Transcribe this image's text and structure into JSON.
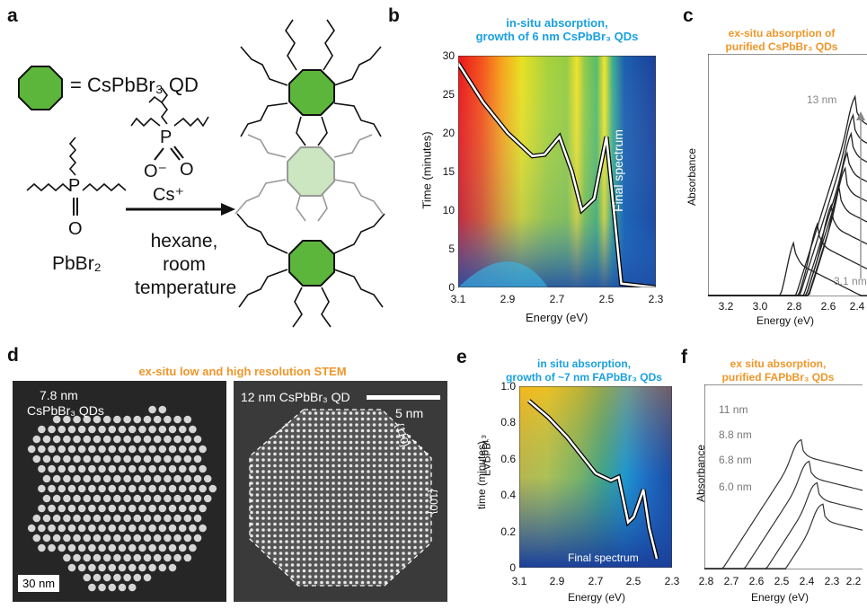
{
  "panels": {
    "a": {
      "label": "a",
      "legend_text": "= CsPbBr₃ QD",
      "cs_ion": "Cs⁺",
      "o_minus": "O⁻",
      "o": "O",
      "p": "P",
      "o_top": "O",
      "reactant": "PbBr₂",
      "conditions": [
        "hexane,",
        "room",
        "temperature"
      ],
      "qd_color": "#5db63c",
      "qd_faded_color": "#cce6c1"
    },
    "b": {
      "label": "b",
      "title_line1": "in-situ absorption,",
      "title_line2": "growth of 6 nm CsPbBr₃ QDs",
      "final_spectrum": "Final spectrum"
    },
    "c": {
      "label": "c",
      "title_line1": "ex-situ absorption of",
      "title_line2": "purified CsPbBr₃ QDs",
      "size_top": "13 nm",
      "size_bottom": "3.1 nm"
    },
    "d": {
      "label": "d",
      "title": "ex-situ low and high resolution STEM",
      "left_label_line1": "7.8 nm",
      "left_label_line2": "CsPbBr₃ QDs",
      "left_scale": "30 nm",
      "right_label": "12 nm CsPbBr₃ QD",
      "right_scale": "5 nm",
      "facet_110": "{110}",
      "facet_100": "{100}"
    },
    "e": {
      "label": "e",
      "title_line1": "in situ absorption,",
      "title_line2": "growth of ~7 nm FAPbBr₃ QDs",
      "final_spectrum": "Final spectrum",
      "ylabel_top": "FAPbBr₃"
    },
    "f": {
      "label": "f",
      "title_line1": "ex situ absorption,",
      "title_line2": "purified FAPbBr₃ QDs",
      "sizes": [
        "11 nm",
        "8.8 nm",
        "6.8 nm",
        "6.0 nm"
      ]
    }
  },
  "chart_data": [
    {
      "panel": "b",
      "type": "heatmap",
      "title": "in-situ absorption, growth of 6 nm CsPbBr₃ QDs",
      "xlabel": "Energy (eV)",
      "ylabel": "Time (minutes)",
      "xlim": [
        3.1,
        2.3
      ],
      "ylim": [
        0,
        30
      ],
      "xticks": [
        "3.1",
        "2.9",
        "2.7",
        "2.5",
        "2.3"
      ],
      "yticks": [
        "0",
        "5",
        "10",
        "15",
        "20",
        "25",
        "30"
      ],
      "final_spectrum": {
        "x": [
          3.1,
          3.0,
          2.9,
          2.8,
          2.75,
          2.69,
          2.64,
          2.6,
          2.55,
          2.5,
          2.47,
          2.44,
          2.3
        ],
        "y": [
          29,
          24,
          20,
          17,
          17.2,
          19.5,
          15,
          10,
          11.5,
          19.5,
          10,
          0.5,
          0
        ]
      }
    },
    {
      "panel": "c",
      "type": "line",
      "title": "ex-situ absorption of purified CsPbBr₃ QDs",
      "xlabel": "Energy (eV)",
      "ylabel": "Absorbance",
      "xlim": [
        3.3,
        2.35
      ],
      "xticks": [
        "3.2",
        "3.0",
        "2.8",
        "2.6",
        "2.4"
      ],
      "series": [
        {
          "name": "3.1 nm",
          "peak": 2.8
        },
        {
          "name": "",
          "peak": 2.66
        },
        {
          "name": "",
          "peak": 2.58
        },
        {
          "name": "",
          "peak": 2.53
        },
        {
          "name": "",
          "peak": 2.5
        },
        {
          "name": "",
          "peak": 2.48
        },
        {
          "name": "",
          "peak": 2.46
        },
        {
          "name": "",
          "peak": 2.45
        },
        {
          "name": "13 nm",
          "peak": 2.44
        }
      ]
    },
    {
      "panel": "e",
      "type": "heatmap",
      "title": "in situ absorption, growth of ~7 nm FAPbBr₃ QDs",
      "xlabel": "Energy (eV)",
      "ylabel": "time (minutes)",
      "xlim": [
        3.1,
        2.3
      ],
      "ylim": [
        0,
        1.0
      ],
      "xticks": [
        "3.1",
        "2.9",
        "2.7",
        "2.5",
        "2.3"
      ],
      "yticks": [
        "0",
        "0.2",
        "0.4",
        "0.6",
        "0.8",
        "1.0"
      ],
      "final_spectrum": {
        "x": [
          3.05,
          2.95,
          2.85,
          2.7,
          2.62,
          2.58,
          2.53,
          2.5,
          2.45,
          2.42,
          2.38
        ],
        "y": [
          0.92,
          0.83,
          0.72,
          0.52,
          0.48,
          0.5,
          0.25,
          0.28,
          0.43,
          0.22,
          0.05
        ]
      }
    },
    {
      "panel": "f",
      "type": "line",
      "title": "ex situ absorption, purified FAPbBr₃ QDs",
      "xlabel": "Energy (eV)",
      "ylabel": "Absorbance",
      "xlim": [
        2.8,
        2.2
      ],
      "xticks": [
        "2.8",
        "2.7",
        "2.6",
        "2.5",
        "2.4",
        "2.3",
        "2.2"
      ],
      "series": [
        {
          "name": "11 nm",
          "peak": 2.37
        },
        {
          "name": "8.8 nm",
          "peak": 2.39
        },
        {
          "name": "6.8 nm",
          "peak": 2.42
        },
        {
          "name": "6.0 nm",
          "peak": 2.45
        }
      ]
    }
  ]
}
